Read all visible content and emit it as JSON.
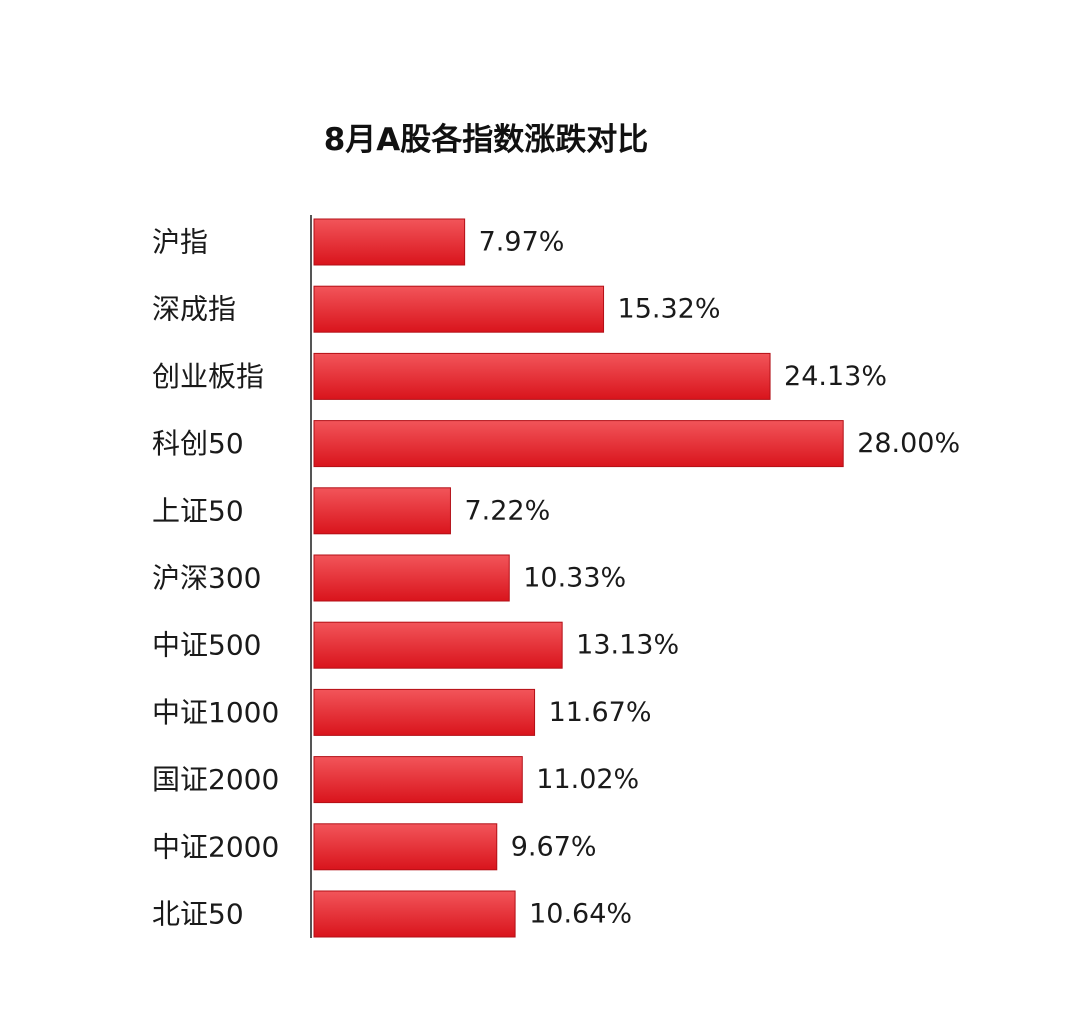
{
  "chart_data": {
    "type": "bar",
    "orientation": "horizontal",
    "title": "8月A股各指数涨跌对比",
    "categories": [
      "沪指",
      "深成指",
      "创业板指",
      "科创50",
      "上证50",
      "沪深300",
      "中证500",
      "中证1000",
      "国证2000",
      "中证2000",
      "北证50"
    ],
    "values": [
      7.97,
      15.32,
      24.13,
      28.0,
      7.22,
      10.33,
      13.13,
      11.67,
      11.02,
      9.67,
      10.64
    ],
    "value_labels": [
      "7.97%",
      "15.32%",
      "24.13%",
      "28.00%",
      "7.22%",
      "10.33%",
      "13.13%",
      "11.67%",
      "11.02%",
      "9.67%",
      "10.64%"
    ],
    "unit": "%",
    "xlim": [
      0,
      28
    ],
    "grid": false,
    "legend": "none",
    "colors": {
      "bar_top": "#f2555a",
      "bar_bottom": "#d9141c",
      "bar_edge": "#b30f16"
    }
  }
}
